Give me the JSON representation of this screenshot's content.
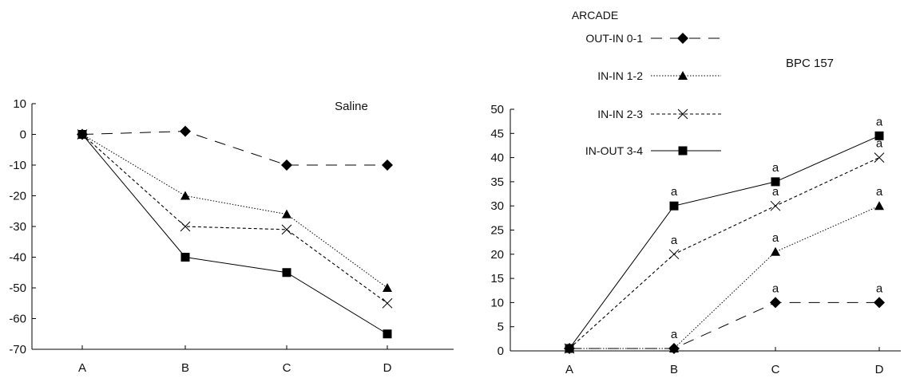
{
  "legend": {
    "title": "ARCADE",
    "entries": [
      {
        "label": "OUT-IN 0-1",
        "marker": "diamond",
        "dash": "dashed"
      },
      {
        "label": "IN-IN 1-2",
        "marker": "triangle",
        "dash": "dotted"
      },
      {
        "label": "IN-IN 2-3",
        "marker": "cross",
        "dash": "shortdash"
      },
      {
        "label": "IN-OUT 3-4",
        "marker": "square",
        "dash": "solid"
      }
    ]
  },
  "chart_data": [
    {
      "type": "line",
      "title": "Saline",
      "categories": [
        "A",
        "B",
        "C",
        "D"
      ],
      "ylim": [
        -70,
        10
      ],
      "yticks": [
        10,
        0,
        -10,
        -20,
        -30,
        -40,
        -50,
        -60,
        -70
      ],
      "series": [
        {
          "name": "OUT-IN 0-1",
          "values": [
            0,
            1,
            -10,
            -10
          ]
        },
        {
          "name": "IN-IN 1-2",
          "values": [
            0,
            -20,
            -26,
            -50
          ]
        },
        {
          "name": "IN-IN 2-3",
          "values": [
            0,
            -30,
            -31,
            -55
          ]
        },
        {
          "name": "IN-OUT 3-4",
          "values": [
            0,
            -40,
            -45,
            -65
          ]
        }
      ]
    },
    {
      "type": "line",
      "title": "BPC 157",
      "categories": [
        "A",
        "B",
        "C",
        "D"
      ],
      "ylim": [
        0,
        50
      ],
      "yticks": [
        50,
        45,
        40,
        35,
        30,
        25,
        20,
        15,
        10,
        5,
        0
      ],
      "series": [
        {
          "name": "OUT-IN 0-1",
          "values": [
            0.5,
            0.5,
            10,
            10
          ],
          "labels": [
            "",
            "",
            "a",
            "a"
          ]
        },
        {
          "name": "IN-IN 1-2",
          "values": [
            0.5,
            0.5,
            20.5,
            30
          ],
          "labels": [
            "",
            "a",
            "a",
            "a"
          ]
        },
        {
          "name": "IN-IN 2-3",
          "values": [
            0.5,
            20,
            30,
            40
          ],
          "labels": [
            "",
            "a",
            "a",
            "a"
          ]
        },
        {
          "name": "IN-OUT 3-4",
          "values": [
            0.5,
            30,
            35,
            44.5
          ],
          "labels": [
            "",
            "a",
            "a",
            "a"
          ]
        }
      ]
    }
  ],
  "styles": {
    "line_color": "#000000"
  }
}
